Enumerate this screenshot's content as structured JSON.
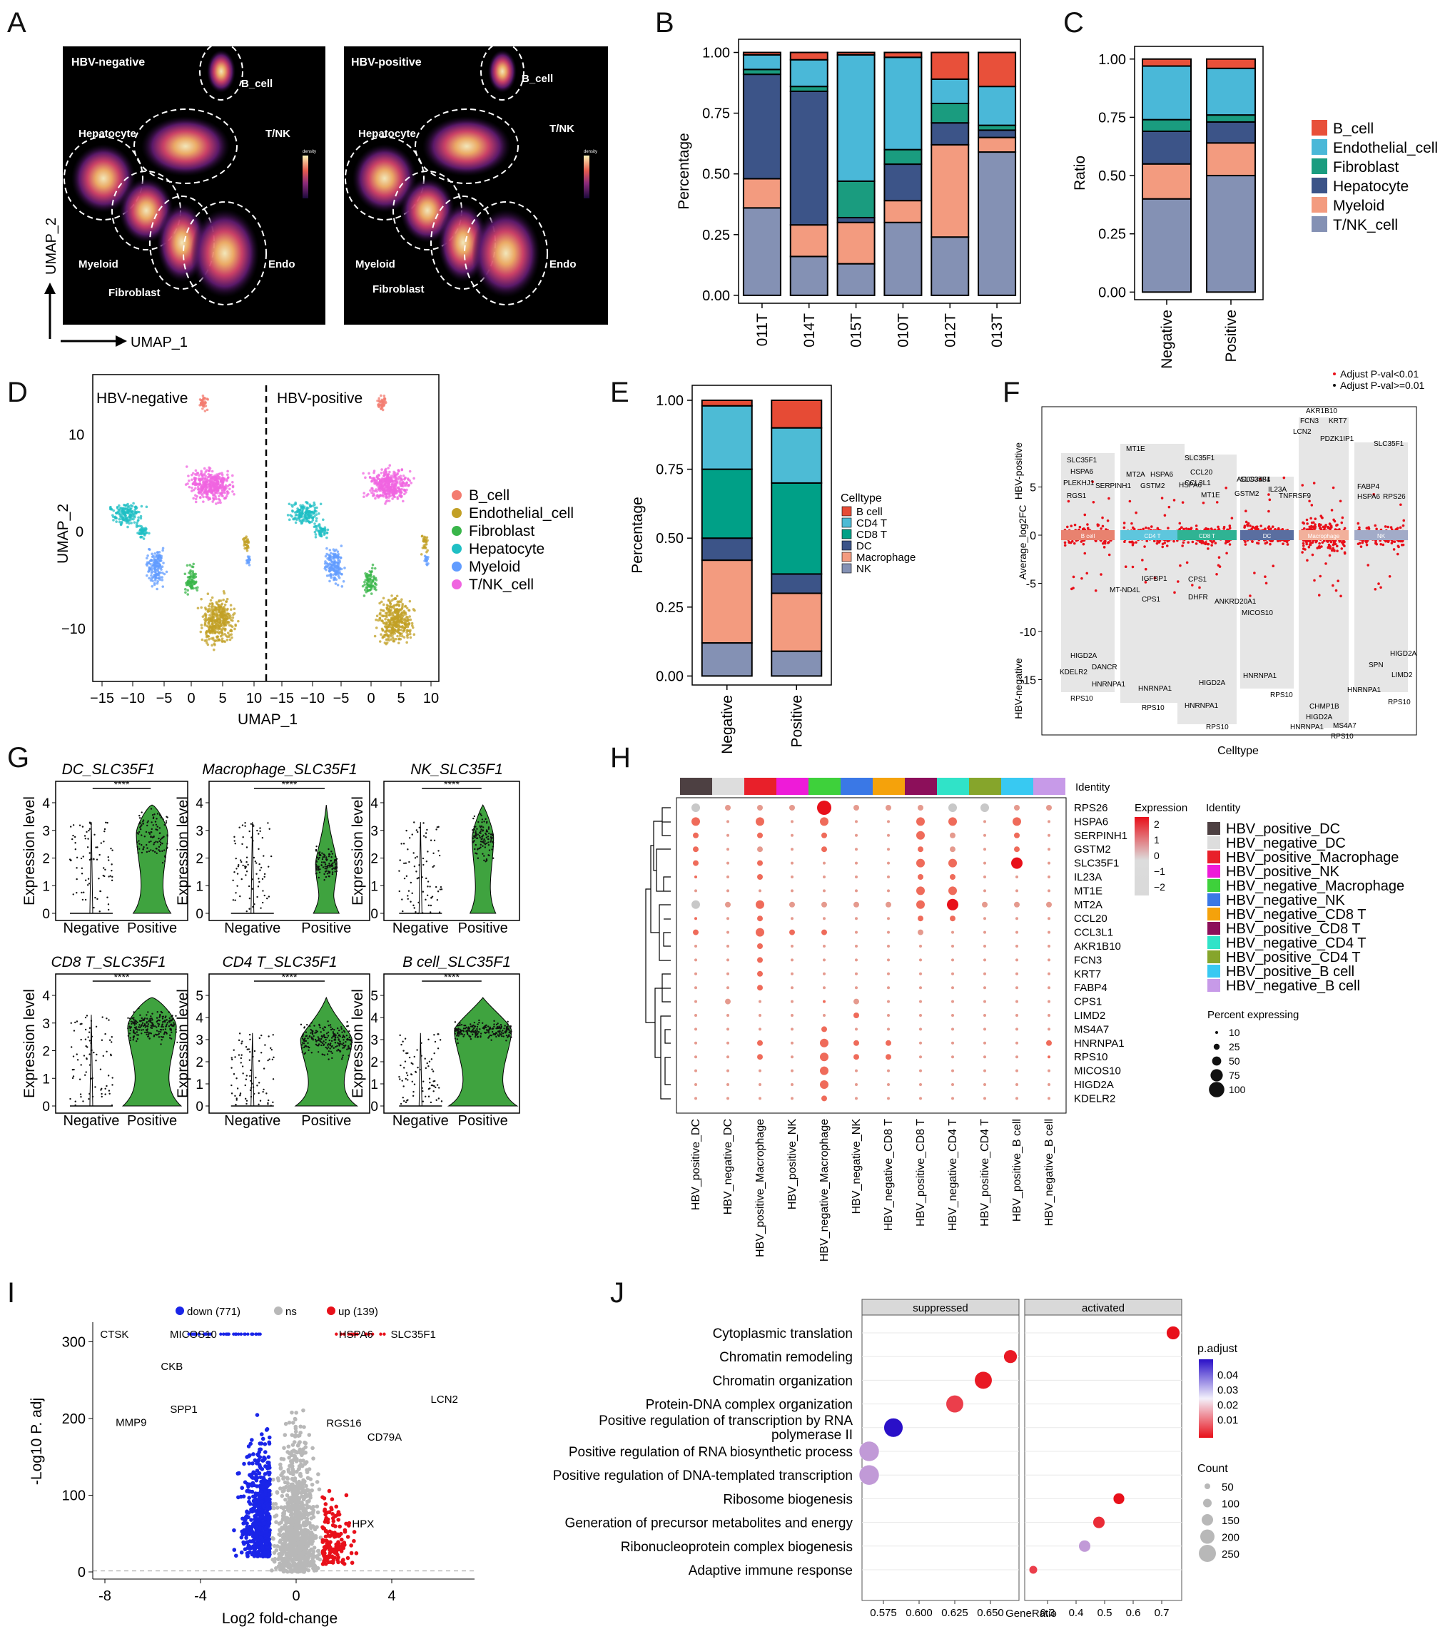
{
  "panels": {
    "A": "A",
    "B": "B",
    "C": "C",
    "D": "D",
    "E": "E",
    "F": "F",
    "G": "G",
    "H": "H",
    "I": "I",
    "J": "J"
  },
  "A": {
    "left_title": "HBV-negative",
    "right_title": "HBV-positive",
    "regions": [
      "B_cell",
      "T/NK",
      "Hepatocyte",
      "Myeloid",
      "Fibroblast",
      "Endo"
    ],
    "legend_title": "density",
    "x_axis": "UMAP_1",
    "y_axis": "UMAP_2"
  },
  "colors": {
    "B_cell": "#e8503a",
    "Endothelial_cell": "#4ab8d8",
    "Fibroblast": "#1a9c7f",
    "Hepatocyte": "#3c5488",
    "Myeloid": "#f39b7f",
    "TNK_cell": "#8491b4",
    "umap_B": "#f37c70",
    "umap_Endo": "#c2a026",
    "umap_Fibro": "#39b54a",
    "umap_Hep": "#1fbfc4",
    "umap_Mye": "#619cff",
    "umap_TNK": "#f064e0"
  },
  "chart_data": [
    {
      "id": "B",
      "type": "bar",
      "ylabel": "Percentage",
      "ylim": [
        0,
        1
      ],
      "categories": [
        "011T",
        "014T",
        "015T",
        "010T",
        "012T",
        "013T"
      ],
      "yticks": [
        "0.00",
        "0.25",
        "0.50",
        "0.75",
        "1.00"
      ],
      "series": [
        {
          "name": "T/NK_cell",
          "values": [
            0.36,
            0.16,
            0.13,
            0.3,
            0.24,
            0.59
          ]
        },
        {
          "name": "Myeloid",
          "values": [
            0.12,
            0.13,
            0.17,
            0.09,
            0.38,
            0.06
          ]
        },
        {
          "name": "Hepatocyte",
          "values": [
            0.43,
            0.55,
            0.02,
            0.15,
            0.09,
            0.03
          ]
        },
        {
          "name": "Fibroblast",
          "values": [
            0.02,
            0.02,
            0.15,
            0.06,
            0.08,
            0.02
          ]
        },
        {
          "name": "Endothelial_cell",
          "values": [
            0.06,
            0.11,
            0.52,
            0.38,
            0.1,
            0.16
          ]
        },
        {
          "name": "B_cell",
          "values": [
            0.01,
            0.03,
            0.01,
            0.02,
            0.11,
            0.14
          ]
        }
      ]
    },
    {
      "id": "C",
      "type": "bar",
      "ylabel": "Ratio",
      "ylim": [
        0,
        1
      ],
      "categories": [
        "Negative",
        "Positive"
      ],
      "yticks": [
        "0.00",
        "0.25",
        "0.50",
        "0.75",
        "1.00"
      ],
      "series": [
        {
          "name": "T/NK_cell",
          "values": [
            0.4,
            0.5
          ]
        },
        {
          "name": "Myeloid",
          "values": [
            0.15,
            0.14
          ]
        },
        {
          "name": "Hepatocyte",
          "values": [
            0.14,
            0.09
          ]
        },
        {
          "name": "Fibroblast",
          "values": [
            0.05,
            0.03
          ]
        },
        {
          "name": "Endothelial_cell",
          "values": [
            0.23,
            0.2
          ]
        },
        {
          "name": "B_cell",
          "values": [
            0.03,
            0.04
          ]
        }
      ],
      "legend": [
        "B_cell",
        "Endothelial_cell",
        "Fibroblast",
        "Hepatocyte",
        "Myeloid",
        "T/NK_cell"
      ]
    },
    {
      "id": "E",
      "type": "bar",
      "ylabel": "Percentage",
      "ylim": [
        0,
        1
      ],
      "categories": [
        "Negative",
        "Positive"
      ],
      "yticks": [
        "0.00",
        "0.25",
        "0.50",
        "0.75",
        "1.00"
      ],
      "legend_title": "Celltype",
      "series": [
        {
          "name": "NK",
          "values": [
            0.12,
            0.09
          ]
        },
        {
          "name": "Macrophage",
          "values": [
            0.3,
            0.21
          ]
        },
        {
          "name": "DC",
          "values": [
            0.08,
            0.07
          ]
        },
        {
          "name": "CD8 T",
          "values": [
            0.25,
            0.33
          ]
        },
        {
          "name": "CD4 T",
          "values": [
            0.23,
            0.2
          ]
        },
        {
          "name": "B cell",
          "values": [
            0.02,
            0.1
          ]
        }
      ],
      "legend": [
        "B cell",
        "CD4 T",
        "CD8 T",
        "DC",
        "Macrophage",
        "NK"
      ]
    },
    {
      "id": "I",
      "type": "scatter",
      "xlabel": "Log2 fold-change",
      "ylabel": "-Log10 P. adj",
      "xticks": [
        "-8",
        "-4",
        "0",
        "4"
      ],
      "yticks": [
        "0",
        "100",
        "200",
        "300"
      ],
      "legend": [
        "down (771)",
        "ns",
        "up (139)"
      ],
      "labels": [
        {
          "t": "CTSK",
          "x": -7.6,
          "y": 310
        },
        {
          "t": "MICOS10",
          "x": -4.3,
          "y": 310
        },
        {
          "t": "HSPA6",
          "x": 2.5,
          "y": 310
        },
        {
          "t": "SLC35F1",
          "x": 4.9,
          "y": 310
        },
        {
          "t": "CKB",
          "x": -5.2,
          "y": 268
        },
        {
          "t": "LCN2",
          "x": 6.2,
          "y": 225
        },
        {
          "t": "SPP1",
          "x": -4.7,
          "y": 212
        },
        {
          "t": "RGS16",
          "x": 2.0,
          "y": 194
        },
        {
          "t": "MMP9",
          "x": -6.9,
          "y": 195
        },
        {
          "t": "CD79A",
          "x": 3.7,
          "y": 176
        },
        {
          "t": "HPX",
          "x": 2.8,
          "y": 63
        }
      ]
    },
    {
      "id": "J",
      "type": "scatter",
      "xlabel": "GeneRatio",
      "facets": [
        "suppressed",
        "activated"
      ],
      "xticks_suppressed": [
        "0.575",
        "0.600",
        "0.625",
        "0.650"
      ],
      "xticks_activated": [
        "0.3",
        "0.4",
        "0.5",
        "0.6",
        "0.7"
      ],
      "terms": [
        {
          "term": "Cytoplasmic translation",
          "facet": "activated",
          "x": 0.74,
          "p": 0.005,
          "count": 150
        },
        {
          "term": "Chromatin remodeling",
          "facet": "suppressed",
          "x": 0.664,
          "p": 0.006,
          "count": 150
        },
        {
          "term": "Chromatin organization",
          "facet": "suppressed",
          "x": 0.645,
          "p": 0.006,
          "count": 230
        },
        {
          "term": "Protein-DNA complex organization",
          "facet": "suppressed",
          "x": 0.625,
          "p": 0.01,
          "count": 230
        },
        {
          "term": "Positive regulation of transcription by RNA polymerase II",
          "facet": "suppressed",
          "x": 0.582,
          "p": 0.045,
          "count": 260
        },
        {
          "term": "Positive regulation of RNA biosynthetic process",
          "facet": "suppressed",
          "x": 0.565,
          "p": 0.03,
          "count": 280
        },
        {
          "term": "Positive regulation of DNA-templated transcription",
          "facet": "suppressed",
          "x": 0.565,
          "p": 0.03,
          "count": 280
        },
        {
          "term": "Ribosome biogenesis",
          "facet": "activated",
          "x": 0.55,
          "p": 0.005,
          "count": 110
        },
        {
          "term": "Generation of precursor metabolites and energy",
          "facet": "activated",
          "x": 0.48,
          "p": 0.008,
          "count": 120
        },
        {
          "term": "Ribonucleoprotein complex biogenesis",
          "facet": "activated",
          "x": 0.43,
          "p": 0.03,
          "count": 120
        },
        {
          "term": "Adaptive immune response",
          "facet": "activated",
          "x": 0.25,
          "p": 0.01,
          "count": 50
        }
      ],
      "legend_padj_title": "p.adjust",
      "legend_padj": [
        "0.04",
        "0.03",
        "0.02",
        "0.01"
      ],
      "legend_count_title": "Count",
      "legend_count": [
        "50",
        "100",
        "150",
        "200",
        "250"
      ]
    }
  ],
  "D": {
    "left_title": "HBV-negative",
    "right_title": "HBV-positive",
    "xlabel": "UMAP_1",
    "ylabel": "UMAP_2",
    "xticks": [
      "−15",
      "−10",
      "−5",
      "0",
      "5",
      "10",
      "−15",
      "−10",
      "−5",
      "0",
      "5",
      "10"
    ],
    "yticks": [
      "10",
      "0",
      "−10"
    ],
    "legend": [
      "B_cell",
      "Endothelial_cell",
      "Fibroblast",
      "Hepatocyte",
      "Myeloid",
      "T/NK_cell"
    ]
  },
  "F": {
    "legend": [
      "Adjust P-val<0.01",
      "Adjust P-val>=0.01"
    ],
    "ylabel": "Average_log2FC",
    "xlabel": "Celltype",
    "ytop": "HBV-positive",
    "ybottom": "HBV-negative",
    "yticks": [
      "5",
      "0",
      "-5",
      "-10",
      "-15"
    ],
    "bands": [
      "B cell",
      "CD4 T",
      "CD8 T",
      "DC",
      "Macrophage",
      "NK"
    ],
    "genes": [
      "SLC35F1",
      "HSPA6",
      "PLEKHJ1",
      "SERPINH1",
      "RGS1",
      "MT1E",
      "MT2A",
      "HSPA6",
      "GSTM2",
      "SLC35F1",
      "CCL20",
      "CCL3L1",
      "HSPA6",
      "MT1E",
      "SLC35F1",
      "IL23A",
      "TNFRSF9",
      "GSTM2",
      "AKR1B10",
      "FCN3",
      "KRT7",
      "LCN2",
      "PDZK1IP1",
      "SLC35F1",
      "FABP4",
      "HSPA6",
      "RPS26",
      "DANCR",
      "HNRNPA1",
      "IGFBP1",
      "MT-ND4L",
      "CPS1",
      "CPS1",
      "DHFR",
      "ANKRD20A1",
      "MICOS10",
      "HIGD2A",
      "KDELR2",
      "RPS10",
      "HNRNPA1",
      "RPS10",
      "HIGD2A",
      "HNRNPA1",
      "RPS10",
      "HNRNPA1",
      "RPS10",
      "CHMP1B",
      "HIGD2A",
      "HNRNPA1",
      "MS4A7",
      "RPS10",
      "HIGD2A",
      "SPN",
      "LIMD2",
      "HNRNPA1",
      "RPS10",
      "AC093484"
    ]
  },
  "G": {
    "ylabel": "Expression level",
    "sig": "****",
    "groups": [
      "Negative",
      "Positive"
    ],
    "panels": [
      "DC_SLC35F1",
      "Macrophage_SLC35F1",
      "NK_SLC35F1",
      "CD8 T_SLC35F1",
      "CD4 T_SLC35F1",
      "B cell_SLC35F1"
    ]
  },
  "H": {
    "identity_label": "Identity",
    "genes": [
      "RPS26",
      "HSPA6",
      "SERPINH1",
      "GSTM2",
      "SLC35F1",
      "IL23A",
      "MT1E",
      "MT2A",
      "CCL20",
      "CCL3L1",
      "AKR1B10",
      "FCN3",
      "KRT7",
      "FABP4",
      "CPS1",
      "LIMD2",
      "MS4A7",
      "HNRNPA1",
      "RPS10",
      "MICOS10",
      "HIGD2A",
      "KDELR2"
    ],
    "identities": [
      "HBV_positive_DC",
      "HBV_negative_DC",
      "HBV_positive_Macrophage",
      "HBV_positive_NK",
      "HBV_negative_Macrophage",
      "HBV_negative_NK",
      "HBV_negative_CD8 T",
      "HBV_positive_CD8 T",
      "HBV_negative_CD4 T",
      "HBV_positive_CD4 T",
      "HBV_positive_B cell",
      "HBV_negative_B cell"
    ],
    "identity_colors": [
      "#4d4042",
      "#dddddd",
      "#e8202a",
      "#ee1bd8",
      "#3ed13b",
      "#3a78e6",
      "#f5a20b",
      "#8c0f5a",
      "#30e3c8",
      "#86a52b",
      "#38c9f2",
      "#c79ae8"
    ],
    "xcols": [
      "HBV_positive_DC",
      "HBV_negative_DC",
      "HBV_positive_Macrophage",
      "HBV_positive_NK",
      "HBV_negative_Macrophage",
      "HBV_negative_NK",
      "HBV_negative_CD8 T",
      "HBV_positive_CD8 T",
      "HBV_negative_CD4 T",
      "HBV_positive_CD4 T",
      "HBV_positive_B cell",
      "HBV_negative_B cell"
    ],
    "legend_expression": "Expression",
    "expr_ticks": [
      "2",
      "1",
      "0",
      "−1",
      "−2"
    ],
    "legend_percent": "Percent expressing",
    "percent_ticks": [
      "10",
      "25",
      "50",
      "75",
      "100"
    ],
    "legend_identity_title": "Identity",
    "legend_identity": [
      "HBV_positive_DC",
      "HBV_negative_DC",
      "HBV_positive_Macrophage",
      "HBV_positive_NK",
      "HBV_negative_Macrophage",
      "HBV_negative_NK",
      "HBV_negative_CD8 T",
      "HBV_positive_CD8 T",
      "HBV_negative_CD4 T",
      "HBV_positive_CD4 T",
      "HBV_positive_B cell",
      "HBV_negative_B cell"
    ]
  }
}
